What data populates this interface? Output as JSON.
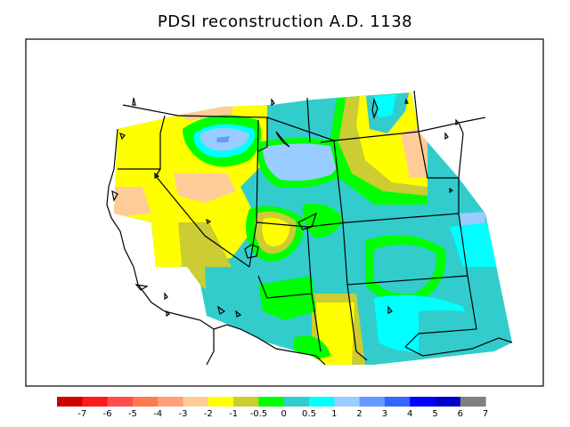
{
  "title": "PDSI reconstruction A.D. 1138",
  "legend": {
    "colors": [
      "#cc0000",
      "#ff1a1a",
      "#ff4d4d",
      "#ff7a4d",
      "#ffa07a",
      "#ffcc99",
      "#ffff00",
      "#cccc33",
      "#00ff00",
      "#33cccc",
      "#00ffff",
      "#99ccff",
      "#6699ff",
      "#3366ff",
      "#0000ff",
      "#0000cc",
      "#808080"
    ],
    "ticks": [
      "-7",
      "-6",
      "-5",
      "-4",
      "-3",
      "-2",
      "-1",
      "-0.5",
      "0",
      "0.5",
      "1",
      "2",
      "3",
      "4",
      "5",
      "6",
      "7"
    ]
  },
  "palette": {
    "yellow": "#ffff00",
    "olive": "#cccc33",
    "green": "#00ff00",
    "teal": "#33cccc",
    "cyan": "#00ffff",
    "lightblue": "#99ccff",
    "blue": "#6699ff",
    "peach": "#ffcc99"
  }
}
